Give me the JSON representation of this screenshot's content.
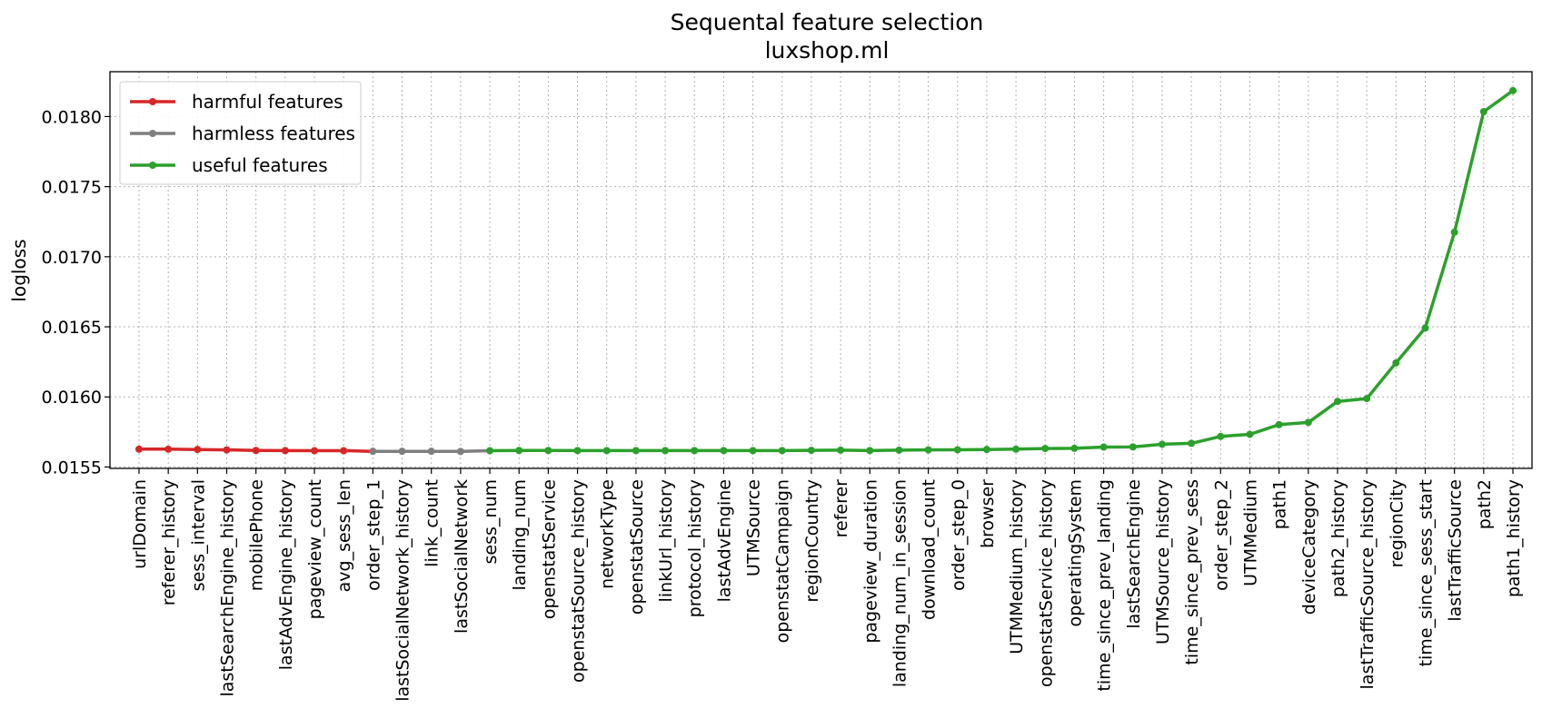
{
  "chart_data": {
    "type": "line",
    "title": "Sequental feature selection",
    "subtitle": "luxshop.ml",
    "xlabel": "",
    "ylabel": "logloss",
    "ylim": [
      0.01549,
      0.01832
    ],
    "yticks": [
      0.0155,
      0.016,
      0.0165,
      0.017,
      0.0175,
      0.018
    ],
    "ytick_labels": [
      "0.0155",
      "0.0160",
      "0.0165",
      "0.0170",
      "0.0175",
      "0.0180"
    ],
    "grid": true,
    "legend_position": "top-left",
    "categories": [
      "urlDomain",
      "referer_history",
      "sess_interval",
      "lastSearchEngine_history",
      "mobilePhone",
      "lastAdvEngine_history",
      "pageview_count",
      "avg_sess_len",
      "order_step_1",
      "lastSocialNetwork_history",
      "link_count",
      "lastSocialNetwork",
      "sess_num",
      "landing_num",
      "openstatService",
      "openstatSource_history",
      "networkType",
      "openstatSource",
      "linkUrl_history",
      "protocol_history",
      "lastAdvEngine",
      "UTMSource",
      "openstatCampaign",
      "regionCountry",
      "referer",
      "pageview_duration",
      "landing_num_in_session",
      "download_count",
      "order_step_0",
      "browser",
      "UTMMedium_history",
      "openstatService_history",
      "operatingSystem",
      "time_since_prev_landing",
      "lastSearchEngine",
      "UTMSource_history",
      "time_since_prev_sess",
      "order_step_2",
      "UTMMedium",
      "path1",
      "deviceCategory",
      "path2_history",
      "lastTrafficSource_history",
      "regionCity",
      "time_since_sess_start",
      "lastTrafficSource",
      "path2",
      "path1_history"
    ],
    "values": [
      0.015627,
      0.015627,
      0.015625,
      0.015622,
      0.015618,
      0.015617,
      0.015616,
      0.015616,
      0.015612,
      0.015612,
      0.015612,
      0.015611,
      0.015616,
      0.015618,
      0.015618,
      0.015617,
      0.015617,
      0.015617,
      0.015617,
      0.015617,
      0.015617,
      0.015617,
      0.015617,
      0.015619,
      0.01562,
      0.015617,
      0.01562,
      0.015622,
      0.015623,
      0.015625,
      0.015627,
      0.015632,
      0.015633,
      0.015642,
      0.015643,
      0.015662,
      0.015669,
      0.015718,
      0.015733,
      0.015802,
      0.015818,
      0.015968,
      0.015988,
      0.016243,
      0.016492,
      0.017175,
      0.018035,
      0.018185
    ],
    "series": [
      {
        "name": "harmful features",
        "color": "#d62728",
        "start": 0,
        "end": 8
      },
      {
        "name": "harmless features",
        "color": "#7f7f7f",
        "start": 8,
        "end": 12
      },
      {
        "name": "useful features",
        "color": "#2ca02c",
        "start": 12,
        "end": 47
      }
    ]
  }
}
